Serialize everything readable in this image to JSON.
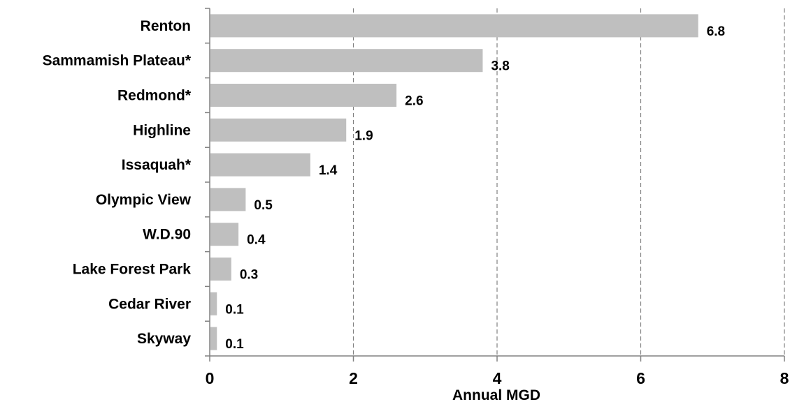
{
  "chart_data": {
    "type": "bar",
    "orientation": "horizontal",
    "categories": [
      "Renton",
      "Sammamish Plateau*",
      "Redmond*",
      "Highline",
      "Issaquah*",
      "Olympic View",
      "W.D.90",
      "Lake Forest Park",
      "Cedar River",
      "Skyway"
    ],
    "values": [
      6.8,
      3.8,
      2.6,
      1.9,
      1.4,
      0.5,
      0.4,
      0.3,
      0.1,
      0.1
    ],
    "value_labels": [
      "6.8",
      "3.8",
      "2.6",
      "1.9",
      "1.4",
      "0.5",
      "0.4",
      "0.3",
      "0.1",
      "0.1"
    ],
    "title": "",
    "xlabel": "Annual MGD",
    "ylabel": "",
    "xlim": [
      0,
      8
    ],
    "xticks": [
      0,
      2,
      4,
      6,
      8
    ],
    "xtick_labels": [
      "0",
      "2",
      "4",
      "6",
      "8"
    ],
    "grid": "vertical dashed",
    "legend": "none",
    "bar_color": "#bfbfbf",
    "grid_color": "#808080",
    "axis_color": "#808080"
  }
}
